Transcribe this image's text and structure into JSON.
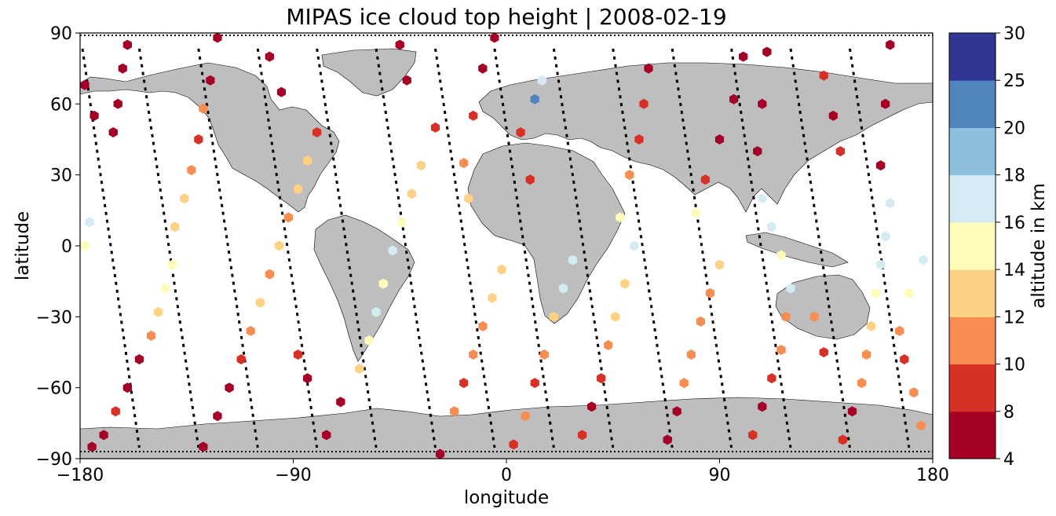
{
  "chart_data": {
    "type": "scatter",
    "title": "MIPAS ice cloud top height | 2008-02-19",
    "xlabel": "longitude",
    "ylabel": "latitude",
    "xlim": [
      -180,
      180
    ],
    "ylim": [
      -90,
      90
    ],
    "xticks": [
      -180,
      -90,
      0,
      90,
      180
    ],
    "yticks": [
      -90,
      -60,
      -30,
      0,
      30,
      60,
      90
    ],
    "xtick_labels": [
      "−180",
      "−90",
      "0",
      "90",
      "180"
    ],
    "ytick_labels": [
      "−90",
      "−60",
      "−30",
      "0",
      "30",
      "60",
      "90"
    ],
    "grid": false,
    "background_map": "world coastlines, land shaded grey",
    "colorbar": {
      "label": "altitude in km",
      "bounds": [
        4,
        8,
        10,
        12,
        14,
        16,
        18,
        20,
        25,
        30
      ],
      "tick_labels": [
        "4",
        "8",
        "10",
        "12",
        "14",
        "16",
        "18",
        "20",
        "25",
        "30"
      ],
      "colors": [
        "#a50026",
        "#d73027",
        "#f46d43",
        "#fdae61",
        "#fee090",
        "#ffffbf",
        "#e0f3f8",
        "#abd9e9",
        "#74add1",
        "#4575b4",
        "#313695"
      ]
    },
    "colors": {
      "bin_4_8": "#a50026",
      "bin_8_10": "#d73027",
      "bin_10_12": "#f88d52",
      "bin_12_14": "#fdd285",
      "bin_14_16": "#fffcbb",
      "bin_16_18": "#d4ebf3",
      "bin_18_20": "#8dc0dd",
      "bin_20_25": "#4f85bc",
      "bin_25_30": "#313695",
      "land": "#bebebe",
      "track": "#000000"
    },
    "orbit_tracks": [
      {
        "lon_start": -179,
        "lon_end": -155
      },
      {
        "lon_start": -155,
        "lon_end": -130
      },
      {
        "lon_start": -130,
        "lon_end": -105
      },
      {
        "lon_start": -105,
        "lon_end": -80
      },
      {
        "lon_start": -80,
        "lon_end": -55
      },
      {
        "lon_start": -55,
        "lon_end": -30
      },
      {
        "lon_start": -30,
        "lon_end": -5
      },
      {
        "lon_start": -5,
        "lon_end": 20
      },
      {
        "lon_start": 20,
        "lon_end": 45
      },
      {
        "lon_start": 45,
        "lon_end": 70
      },
      {
        "lon_start": 70,
        "lon_end": 95
      },
      {
        "lon_start": 95,
        "lon_end": 120
      },
      {
        "lon_start": 120,
        "lon_end": 145
      },
      {
        "lon_start": 145,
        "lon_end": 170
      }
    ],
    "series": [
      {
        "values": [
          [
            -175,
            -85,
            6
          ],
          [
            -170,
            -80,
            6
          ],
          [
            -165,
            -70,
            9
          ],
          [
            -160,
            -60,
            7
          ],
          [
            -155,
            -48,
            7
          ],
          [
            -150,
            -38,
            10
          ],
          [
            -147,
            -28,
            13
          ],
          [
            -144,
            -18,
            15
          ],
          [
            -141,
            -8,
            15
          ],
          [
            -178,
            68,
            6
          ],
          [
            -174,
            55,
            6
          ],
          [
            -176,
            10,
            16
          ],
          [
            -178,
            0,
            15
          ],
          [
            -160,
            85,
            6
          ],
          [
            -162,
            75,
            6
          ],
          [
            -164,
            60,
            7
          ],
          [
            -166,
            48,
            7
          ],
          [
            -140,
            8,
            12
          ],
          [
            -136,
            20,
            12
          ],
          [
            -133,
            32,
            10
          ],
          [
            -130,
            45,
            8
          ],
          [
            -128,
            58,
            11
          ],
          [
            -125,
            70,
            6
          ],
          [
            -122,
            88,
            6
          ],
          [
            -128,
            -85,
            7
          ],
          [
            -122,
            -72,
            6
          ],
          [
            -117,
            -60,
            7
          ],
          [
            -112,
            -48,
            9
          ],
          [
            -108,
            -36,
            11
          ],
          [
            -104,
            -24,
            13
          ],
          [
            -100,
            -12,
            11
          ],
          [
            -96,
            0,
            12
          ],
          [
            -92,
            12,
            10
          ],
          [
            -88,
            24,
            12
          ],
          [
            -84,
            36,
            13
          ],
          [
            -80,
            48,
            8
          ],
          [
            -95,
            65,
            6
          ],
          [
            -100,
            80,
            7
          ],
          [
            -84,
            -56,
            7
          ],
          [
            -88,
            -46,
            8
          ],
          [
            -76,
            -80,
            7
          ],
          [
            -70,
            -66,
            7
          ],
          [
            -62,
            -52,
            13
          ],
          [
            -58,
            -40,
            15
          ],
          [
            -55,
            -28,
            16
          ],
          [
            -52,
            -16,
            15
          ],
          [
            -48,
            -2,
            16
          ],
          [
            -44,
            10,
            15
          ],
          [
            -40,
            22,
            12
          ],
          [
            -36,
            34,
            13
          ],
          [
            -30,
            50,
            9
          ],
          [
            -42,
            70,
            6
          ],
          [
            -45,
            85,
            7
          ],
          [
            -28,
            -88,
            6
          ],
          [
            -22,
            -70,
            10
          ],
          [
            -18,
            -58,
            9
          ],
          [
            -14,
            -46,
            11
          ],
          [
            -10,
            -34,
            11
          ],
          [
            -6,
            -22,
            13
          ],
          [
            -2,
            -10,
            13
          ],
          [
            -16,
            20,
            12
          ],
          [
            -18,
            35,
            10
          ],
          [
            -14,
            55,
            9
          ],
          [
            -10,
            75,
            7
          ],
          [
            -5,
            88,
            6
          ],
          [
            3,
            -84,
            9
          ],
          [
            8,
            -72,
            10
          ],
          [
            12,
            -58,
            8
          ],
          [
            16,
            -46,
            10
          ],
          [
            20,
            -30,
            13
          ],
          [
            24,
            -18,
            16
          ],
          [
            28,
            -6,
            16
          ],
          [
            10,
            28,
            9
          ],
          [
            6,
            48,
            8
          ],
          [
            12,
            62,
            21
          ],
          [
            15,
            70,
            17
          ],
          [
            32,
            -80,
            9
          ],
          [
            36,
            -68,
            7
          ],
          [
            40,
            -56,
            8
          ],
          [
            43,
            -42,
            11
          ],
          [
            46,
            -30,
            12
          ],
          [
            50,
            -16,
            13
          ],
          [
            54,
            0,
            16
          ],
          [
            48,
            12,
            15
          ],
          [
            52,
            30,
            10
          ],
          [
            56,
            45,
            8
          ],
          [
            58,
            60,
            9
          ],
          [
            60,
            75,
            6
          ],
          [
            68,
            -82,
            6
          ],
          [
            72,
            -70,
            7
          ],
          [
            75,
            -58,
            10
          ],
          [
            78,
            -46,
            10
          ],
          [
            82,
            -32,
            11
          ],
          [
            86,
            -20,
            11
          ],
          [
            90,
            -8,
            12
          ],
          [
            80,
            14,
            15
          ],
          [
            84,
            28,
            8
          ],
          [
            90,
            45,
            7
          ],
          [
            96,
            62,
            7
          ],
          [
            100,
            80,
            6
          ],
          [
            104,
            -80,
            8
          ],
          [
            108,
            -68,
            7
          ],
          [
            112,
            -56,
            8
          ],
          [
            116,
            -44,
            10
          ],
          [
            118,
            -30,
            10
          ],
          [
            120,
            -18,
            16
          ],
          [
            116,
            -4,
            15
          ],
          [
            112,
            8,
            16
          ],
          [
            108,
            20,
            16
          ],
          [
            106,
            40,
            7
          ],
          [
            108,
            60,
            7
          ],
          [
            110,
            82,
            6
          ],
          [
            142,
            -82,
            9
          ],
          [
            146,
            -70,
            7
          ],
          [
            150,
            -58,
            10
          ],
          [
            152,
            -46,
            11
          ],
          [
            154,
            -34,
            12
          ],
          [
            156,
            -20,
            14
          ],
          [
            158,
            -8,
            16
          ],
          [
            160,
            4,
            17
          ],
          [
            162,
            18,
            16
          ],
          [
            158,
            34,
            7
          ],
          [
            160,
            60,
            7
          ],
          [
            162,
            85,
            6
          ],
          [
            175,
            -76,
            11
          ],
          [
            172,
            -62,
            10
          ],
          [
            168,
            -48,
            9
          ],
          [
            166,
            -36,
            10
          ],
          [
            170,
            -20,
            14
          ],
          [
            176,
            -6,
            16
          ],
          [
            134,
            72,
            8
          ],
          [
            138,
            55,
            7
          ],
          [
            141,
            40,
            8
          ],
          [
            130,
            -30,
            10
          ],
          [
            134,
            -45,
            9
          ]
        ]
      }
    ]
  }
}
